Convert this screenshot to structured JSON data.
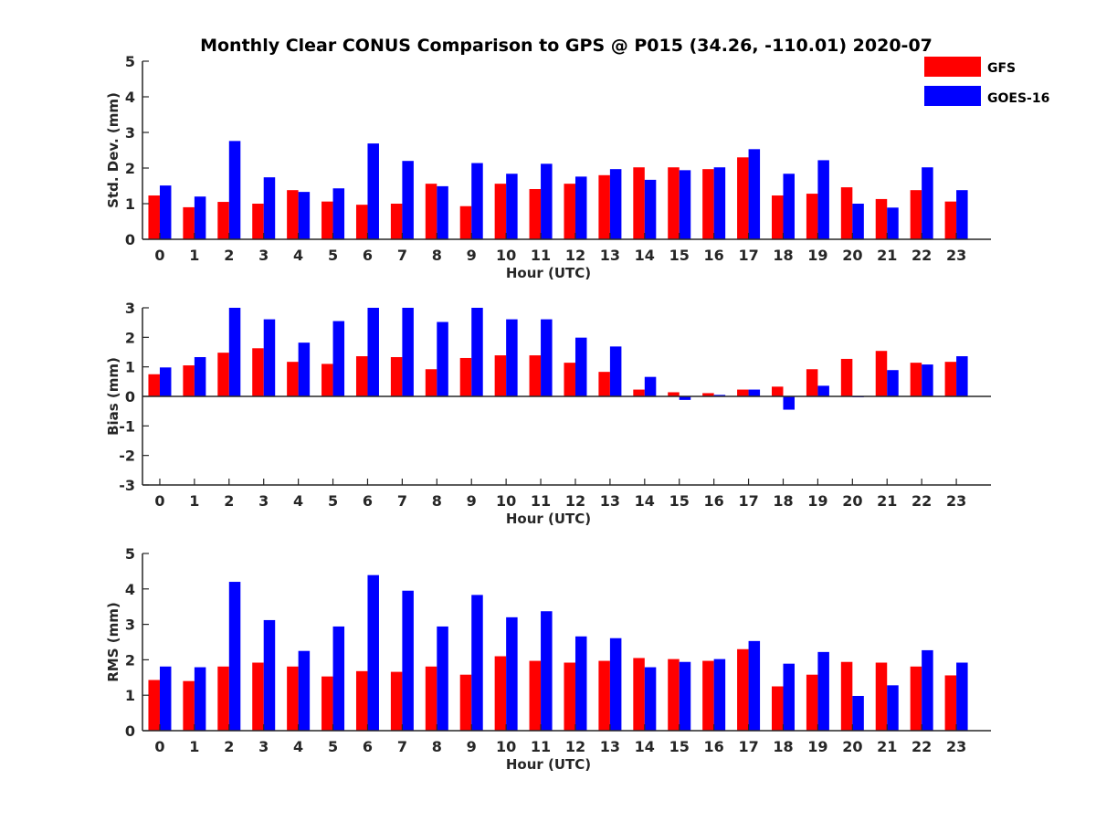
{
  "title": "Monthly Clear CONUS Comparison to GPS @ P015 (34.26, -110.01) 2020-07",
  "legend": {
    "placement": "top-right",
    "items": [
      {
        "label": "GFS",
        "color": "#ff0000"
      },
      {
        "label": "GOES-16",
        "color": "#0000ff"
      }
    ]
  },
  "chart_data": [
    {
      "type": "bar",
      "xlabel": "Hour (UTC)",
      "ylabel": "Std. Dev. (mm)",
      "ylim": [
        0,
        5
      ],
      "yticks": [
        0,
        1,
        2,
        3,
        4,
        5
      ],
      "categories": [
        "0",
        "1",
        "2",
        "3",
        "4",
        "5",
        "6",
        "7",
        "8",
        "9",
        "10",
        "11",
        "12",
        "13",
        "14",
        "15",
        "16",
        "17",
        "18",
        "19",
        "20",
        "21",
        "22",
        "23"
      ],
      "series": [
        {
          "name": "GFS",
          "color": "#ff0000",
          "values": [
            1.23,
            0.9,
            1.05,
            1.0,
            1.38,
            1.06,
            0.97,
            1.0,
            1.56,
            0.93,
            1.56,
            1.41,
            1.56,
            1.8,
            2.02,
            2.02,
            1.97,
            2.3,
            1.23,
            1.28,
            1.46,
            1.13,
            1.38,
            1.06
          ]
        },
        {
          "name": "GOES-16",
          "color": "#0000ff",
          "values": [
            1.51,
            1.2,
            2.76,
            1.74,
            1.33,
            1.43,
            2.69,
            2.2,
            1.49,
            2.14,
            1.84,
            2.12,
            1.76,
            1.97,
            1.67,
            1.94,
            2.02,
            2.53,
            1.84,
            2.22,
            1.0,
            0.89,
            2.02,
            1.38
          ]
        }
      ]
    },
    {
      "type": "bar",
      "xlabel": "Hour (UTC)",
      "ylabel": "Bias (mm)",
      "ylim": [
        -3,
        3
      ],
      "yticks": [
        -3,
        -2,
        -1,
        0,
        1,
        2,
        3
      ],
      "categories": [
        "0",
        "1",
        "2",
        "3",
        "4",
        "5",
        "6",
        "7",
        "8",
        "9",
        "10",
        "11",
        "12",
        "13",
        "14",
        "15",
        "16",
        "17",
        "18",
        "19",
        "20",
        "21",
        "22",
        "23"
      ],
      "series": [
        {
          "name": "GFS",
          "color": "#ff0000",
          "values": [
            0.75,
            1.05,
            1.48,
            1.63,
            1.17,
            1.1,
            1.36,
            1.33,
            0.92,
            1.3,
            1.39,
            1.39,
            1.14,
            0.83,
            0.23,
            0.14,
            0.11,
            0.23,
            0.33,
            0.92,
            1.27,
            1.54,
            1.14,
            1.17
          ]
        },
        {
          "name": "GOES-16",
          "color": "#0000ff",
          "values": [
            0.98,
            1.33,
            3.0,
            2.61,
            1.82,
            2.55,
            3.0,
            3.0,
            2.52,
            3.0,
            2.61,
            2.61,
            1.99,
            1.69,
            0.66,
            -0.12,
            0.05,
            0.23,
            -0.45,
            0.36,
            -0.03,
            0.89,
            1.08,
            1.36
          ]
        }
      ]
    },
    {
      "type": "bar",
      "xlabel": "Hour (UTC)",
      "ylabel": "RMS (mm)",
      "ylim": [
        0,
        5
      ],
      "yticks": [
        0,
        1,
        2,
        3,
        4,
        5
      ],
      "categories": [
        "0",
        "1",
        "2",
        "3",
        "4",
        "5",
        "6",
        "7",
        "8",
        "9",
        "10",
        "11",
        "12",
        "13",
        "14",
        "15",
        "16",
        "17",
        "18",
        "19",
        "20",
        "21",
        "22",
        "23"
      ],
      "series": [
        {
          "name": "GFS",
          "color": "#ff0000",
          "values": [
            1.43,
            1.4,
            1.81,
            1.92,
            1.81,
            1.53,
            1.68,
            1.66,
            1.81,
            1.58,
            2.1,
            1.97,
            1.92,
            1.97,
            2.05,
            2.02,
            1.97,
            2.3,
            1.25,
            1.58,
            1.94,
            1.92,
            1.81,
            1.56
          ]
        },
        {
          "name": "GOES-16",
          "color": "#0000ff",
          "values": [
            1.81,
            1.79,
            4.2,
            3.12,
            2.25,
            2.94,
            4.39,
            3.95,
            2.94,
            3.83,
            3.2,
            3.37,
            2.66,
            2.61,
            1.79,
            1.94,
            2.02,
            2.53,
            1.89,
            2.22,
            0.98,
            1.28,
            2.27,
            1.92
          ]
        }
      ]
    }
  ]
}
